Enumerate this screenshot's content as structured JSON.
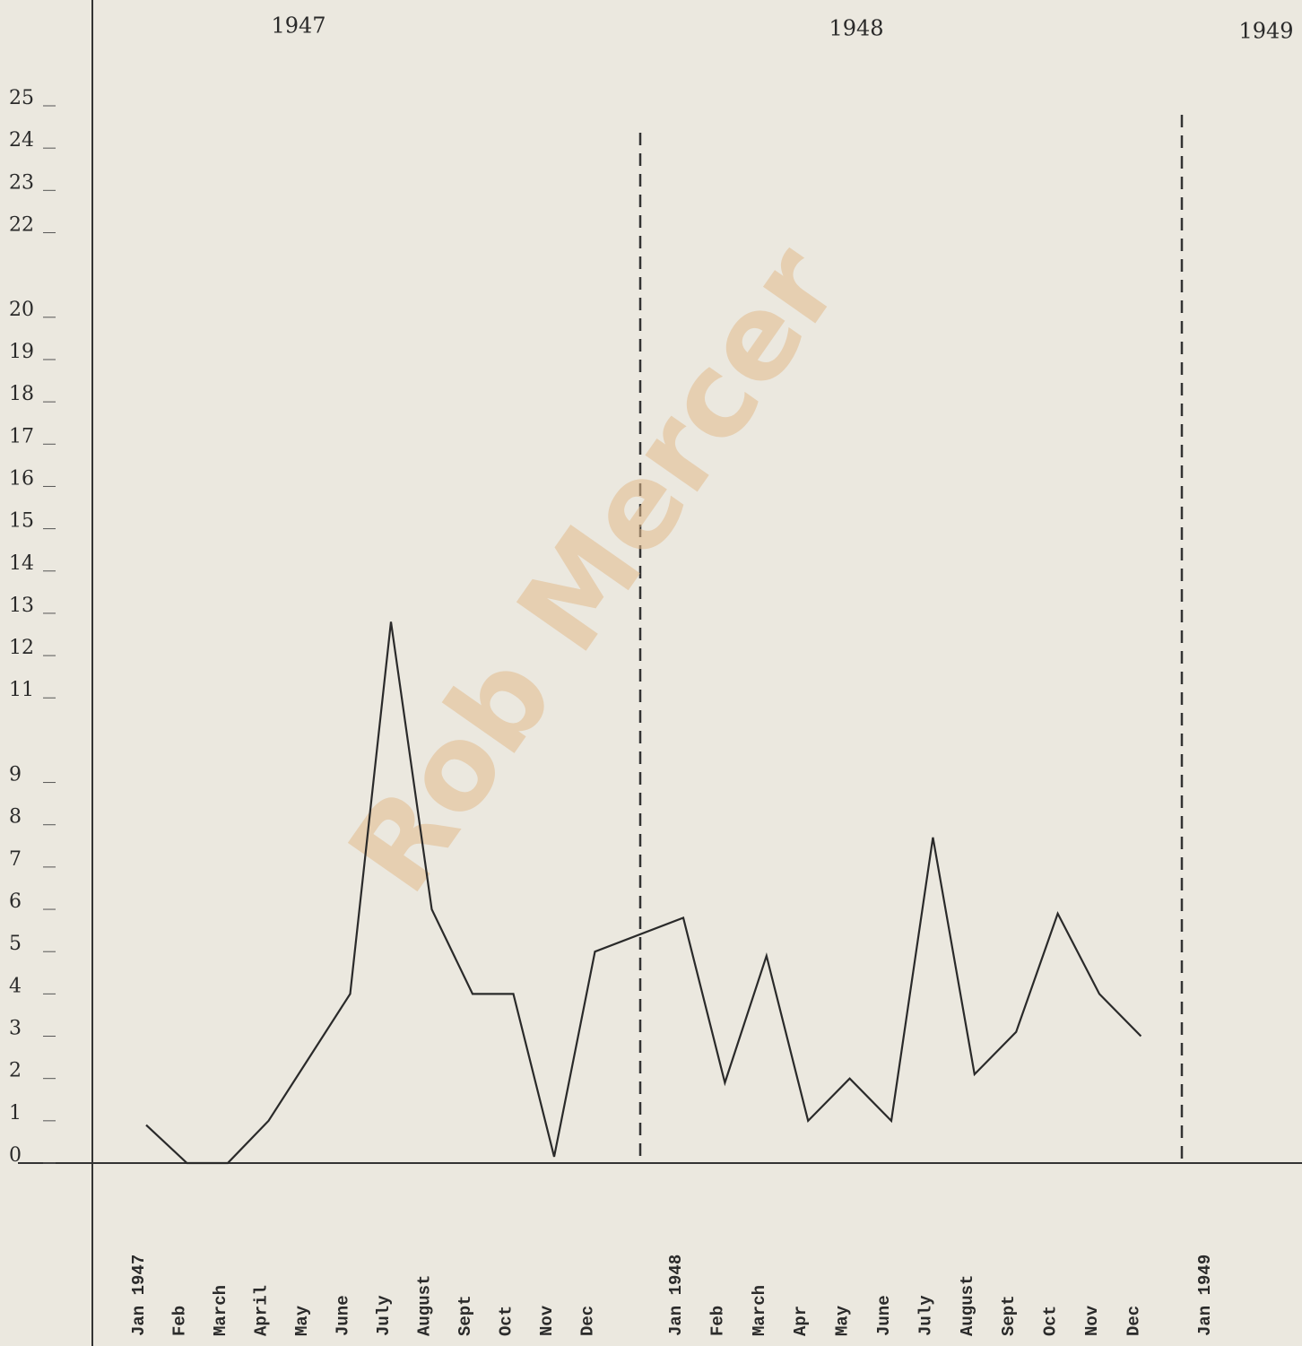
{
  "chart_data": {
    "type": "line",
    "year_labels": [
      "1947",
      "1948",
      "1949"
    ],
    "watermark": "Rob Mercer",
    "categories": [
      "Jan 1947",
      "Feb",
      "March",
      "April",
      "May",
      "June",
      "July",
      "August",
      "Sept",
      "Oct",
      "Nov",
      "Dec",
      "Jan 1948",
      "Feb",
      "March",
      "Apr",
      "May",
      "June",
      "July",
      "August",
      "Sept",
      "Oct",
      "Nov",
      "Dec",
      "Jan 1949"
    ],
    "values": [
      0.9,
      0,
      0,
      1,
      2.5,
      4,
      12.8,
      6,
      4,
      4,
      0.15,
      5,
      5.8,
      1.9,
      4.9,
      1,
      2,
      1,
      7.7,
      2.1,
      3.1,
      5.9,
      4,
      3,
      null
    ],
    "color": "#2a2a2a",
    "ylim": [
      0,
      25
    ],
    "yticks": [
      0,
      1,
      2,
      3,
      4,
      5,
      6,
      7,
      8,
      9,
      11,
      12,
      13,
      14,
      15,
      16,
      17,
      18,
      19,
      20,
      22,
      23,
      24,
      25
    ],
    "grid": false
  }
}
